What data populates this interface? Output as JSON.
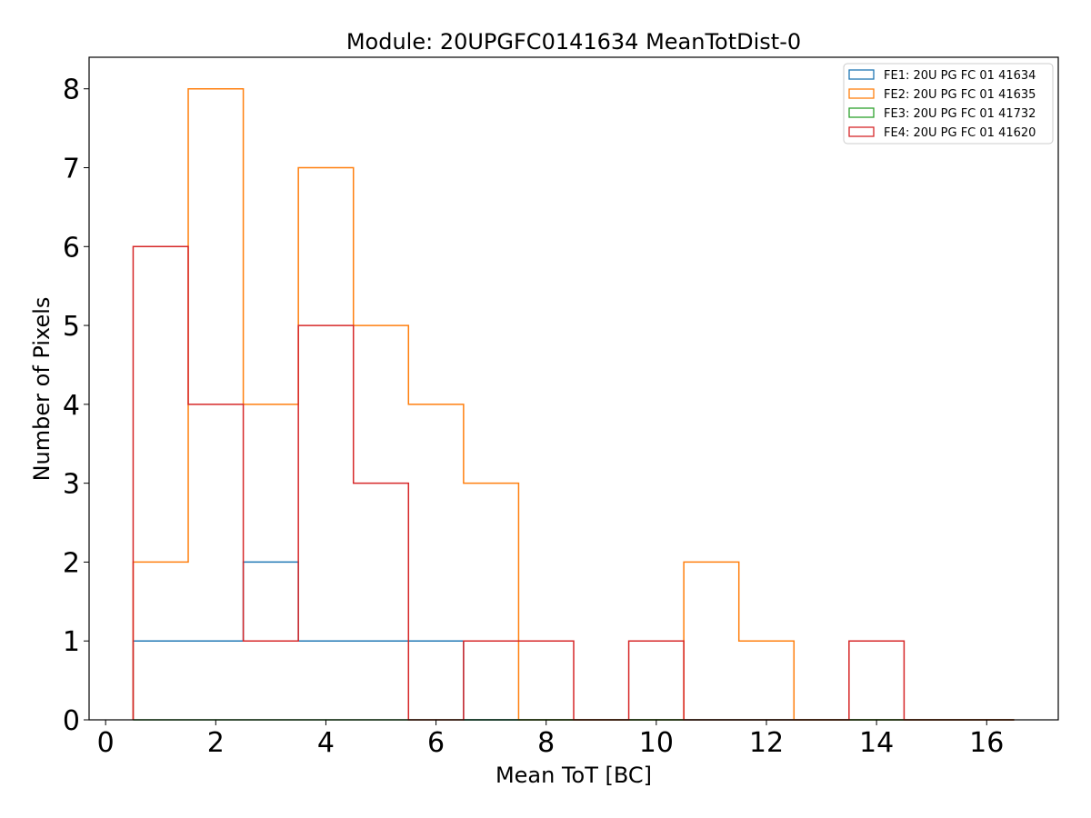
{
  "chart_data": {
    "type": "histogram",
    "title": "Module: 20UPGFC0141634 MeanTotDist-0",
    "xlabel": "Mean ToT [BC]",
    "ylabel": "Number of Pixels",
    "xlim": [
      -0.3,
      17.3
    ],
    "ylim": [
      0,
      8.4
    ],
    "xticks": [
      0,
      2,
      4,
      6,
      8,
      10,
      12,
      14,
      16
    ],
    "yticks": [
      0,
      1,
      2,
      3,
      4,
      5,
      6,
      7,
      8
    ],
    "bin_edges": [
      0.5,
      1.5,
      2.5,
      3.5,
      4.5,
      5.5,
      6.5,
      7.5,
      8.5,
      9.5,
      10.5,
      11.5,
      12.5,
      13.5,
      14.5,
      15.5,
      16.5
    ],
    "legend_position": "top-right",
    "series": [
      {
        "name": "FE1: 20U PG FC 01 41634",
        "color": "#1f77b4",
        "values": [
          1,
          1,
          2,
          1,
          1,
          1,
          0,
          0,
          0,
          0,
          0,
          0,
          0,
          0,
          0,
          0
        ]
      },
      {
        "name": "FE2: 20U PG FC 01 41635",
        "color": "#ff7f0e",
        "values": [
          2,
          8,
          4,
          7,
          5,
          4,
          3,
          0,
          0,
          0,
          2,
          1,
          0,
          0,
          0,
          0
        ]
      },
      {
        "name": "FE3: 20U PG FC 01 41732",
        "color": "#2ca02c",
        "values": [
          0,
          0,
          0,
          0,
          0,
          0,
          0,
          0,
          0,
          0,
          0,
          0,
          0,
          0,
          0,
          0
        ]
      },
      {
        "name": "FE4: 20U PG FC 01 41620",
        "color": "#d62728",
        "values": [
          6,
          4,
          1,
          5,
          3,
          0,
          1,
          1,
          0,
          1,
          0,
          0,
          0,
          1,
          0,
          0
        ]
      }
    ]
  }
}
